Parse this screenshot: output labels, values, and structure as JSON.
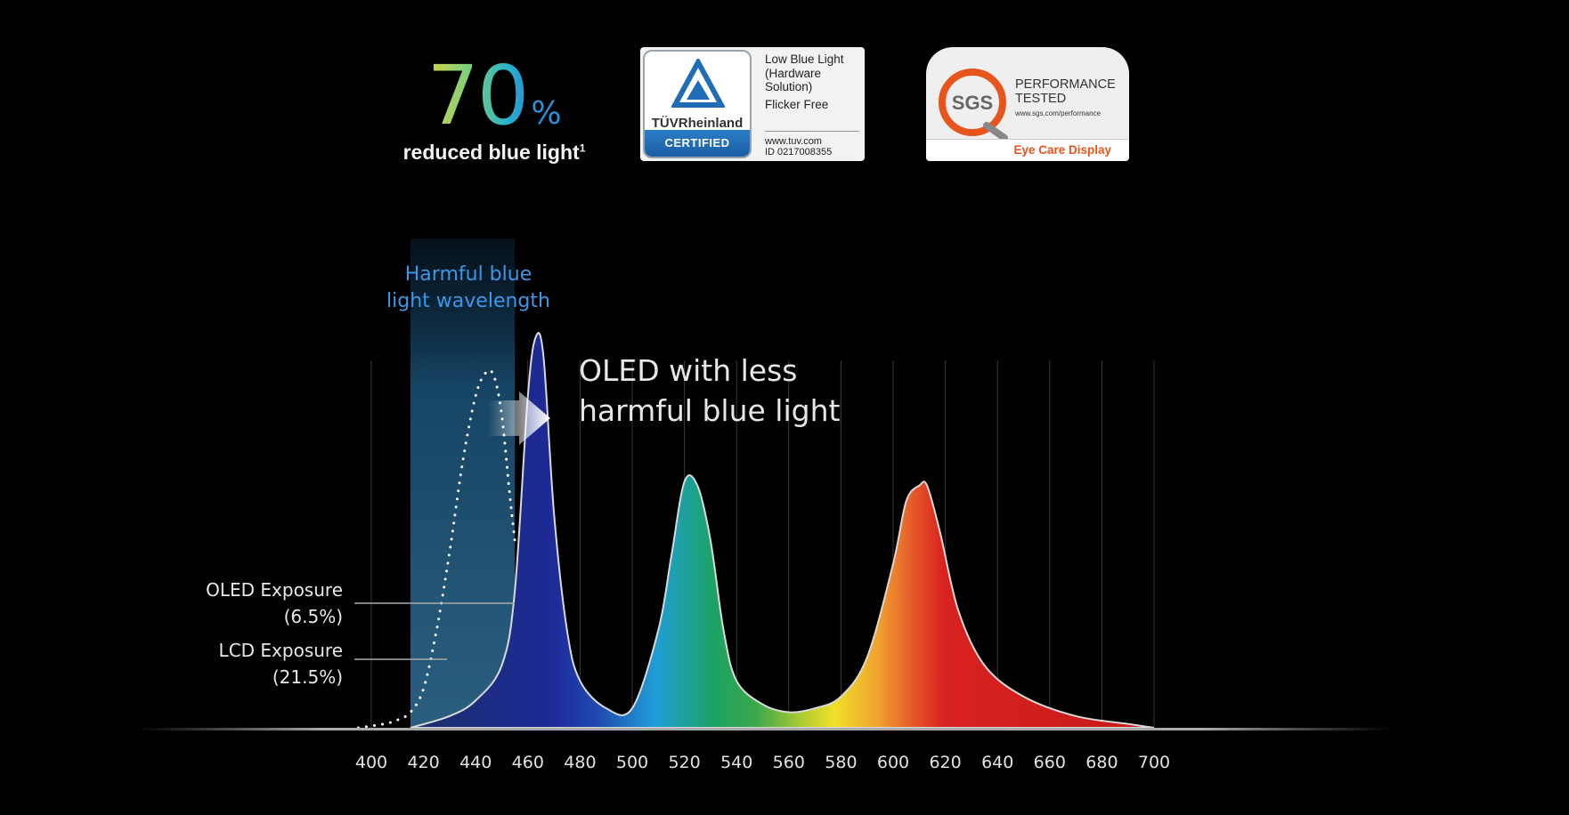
{
  "headline": {
    "value": "70",
    "unit": "%",
    "caption": "reduced blue light",
    "footnote": "1"
  },
  "badges": {
    "tuv": {
      "brand": "TÜVRheinland",
      "certified": "CERTIFIED",
      "lines": [
        "Low Blue Light",
        "(Hardware",
        "Solution)",
        "Flicker Free"
      ],
      "website": "www.tuv.com",
      "id": "ID 0217008355"
    },
    "sgs": {
      "logo": "SGS",
      "line1": "PERFORMANCE",
      "line2": "TESTED",
      "url": "www.sgs.com/performance",
      "footer": "Eye Care Display"
    }
  },
  "annotations": {
    "harmful_line1": "Harmful blue",
    "harmful_line2": "light wavelength",
    "oled_note": "OLED with less\nharmful blue light",
    "oled_exposure_label": "OLED Exposure",
    "oled_exposure_value": "(6.5%)",
    "lcd_exposure_label": "LCD Exposure",
    "lcd_exposure_value": "(21.5%)"
  },
  "colors": {
    "background": "#000000",
    "harmful_band": "#1d4e6e",
    "harmful_text": "#3d97e8",
    "blue_peak": "#1e2b8f",
    "green_peak": "#1b9e5c",
    "red_peak": "#d8221f"
  },
  "chart_data": {
    "type": "area",
    "title": "",
    "xlabel": "",
    "ylabel": "",
    "x_ticks": [
      400,
      420,
      440,
      460,
      480,
      500,
      520,
      540,
      560,
      580,
      600,
      620,
      640,
      660,
      680,
      700
    ],
    "xlim": [
      400,
      700
    ],
    "ylim": [
      0,
      1
    ],
    "grid": true,
    "harmful_band_range": [
      415,
      455
    ],
    "series": [
      {
        "name": "OLED",
        "style": "filled-spectrum",
        "x": [
          415,
          430,
          440,
          450,
          455,
          460,
          463,
          466,
          470,
          475,
          480,
          490,
          500,
          510,
          515,
          520,
          525,
          530,
          535,
          540,
          550,
          560,
          570,
          580,
          590,
          600,
          605,
          610,
          613,
          618,
          625,
          635,
          650,
          670,
          690,
          700
        ],
        "y": [
          0.0,
          0.03,
          0.07,
          0.16,
          0.35,
          0.85,
          1.0,
          0.95,
          0.55,
          0.25,
          0.12,
          0.05,
          0.05,
          0.25,
          0.44,
          0.63,
          0.62,
          0.48,
          0.25,
          0.12,
          0.06,
          0.04,
          0.05,
          0.08,
          0.18,
          0.42,
          0.58,
          0.62,
          0.62,
          0.5,
          0.3,
          0.16,
          0.08,
          0.03,
          0.01,
          0.0
        ]
      },
      {
        "name": "LCD",
        "style": "dotted",
        "x": [
          395,
          405,
          410,
          415,
          420,
          425,
          430,
          435,
          440,
          444,
          447,
          450,
          453,
          455
        ],
        "y": [
          0.0,
          0.01,
          0.02,
          0.04,
          0.1,
          0.25,
          0.45,
          0.68,
          0.85,
          0.91,
          0.9,
          0.8,
          0.6,
          0.48
        ]
      }
    ],
    "exposure": [
      {
        "label": "OLED Exposure",
        "value": 6.5
      },
      {
        "label": "LCD Exposure",
        "value": 21.5
      }
    ]
  }
}
